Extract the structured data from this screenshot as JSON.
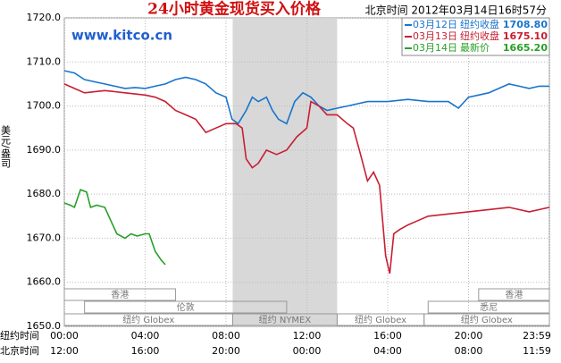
{
  "chart_data": {
    "type": "line",
    "title": "24小时黄金现货买入价格",
    "subtitle": "北京时间 2012年03月14日16时57分",
    "watermark": "www.kitco.cn",
    "ylabel": "美元/盎司",
    "ylim": [
      1650,
      1720
    ],
    "yticks": [
      {
        "value": 1650,
        "label": "1650.0"
      },
      {
        "value": 1660,
        "label": "1660.0"
      },
      {
        "value": 1670,
        "label": "1670.0"
      },
      {
        "value": 1680,
        "label": "1680.0"
      },
      {
        "value": 1690,
        "label": "1690.0"
      },
      {
        "value": 1700,
        "label": "1700.0"
      },
      {
        "value": 1710,
        "label": "1710.0"
      },
      {
        "value": 1720,
        "label": "1720.0"
      }
    ],
    "xlim": [
      0,
      24
    ],
    "grid": true,
    "time_axes": [
      {
        "name": "纽约时间",
        "ticks": [
          {
            "value": 0,
            "label": "00:00"
          },
          {
            "value": 4,
            "label": "04:00"
          },
          {
            "value": 8,
            "label": "08:00"
          },
          {
            "value": 12,
            "label": "12:00"
          },
          {
            "value": 16,
            "label": "16:00"
          },
          {
            "value": 20,
            "label": "20:00"
          },
          {
            "value": 24,
            "label": "23:59"
          }
        ]
      },
      {
        "name": "北京时间",
        "ticks": [
          {
            "value": 0,
            "label": "12:00"
          },
          {
            "value": 4,
            "label": "16:00"
          },
          {
            "value": 8,
            "label": "20:00"
          },
          {
            "value": 12,
            "label": "00:00"
          },
          {
            "value": 16,
            "label": "04:00"
          },
          {
            "value": 20,
            "label": "08:00"
          },
          {
            "value": 24,
            "label": "11:59"
          }
        ]
      }
    ],
    "shade": [
      8.33,
      13.5
    ],
    "sessions": [
      {
        "row": 0,
        "start": 0,
        "end": 5.5,
        "label": "香港"
      },
      {
        "row": 0,
        "start": 20.5,
        "end": 24,
        "label": "香港"
      },
      {
        "row": 1,
        "start": 1,
        "end": 11,
        "label": "伦敦"
      },
      {
        "row": 1,
        "start": 18,
        "end": 24,
        "label": "悉尼"
      },
      {
        "row": 2,
        "start": 0,
        "end": 8.33,
        "label": "纽约 Globex"
      },
      {
        "row": 2,
        "start": 8.33,
        "end": 13.5,
        "label": "纽约 NYMEX"
      },
      {
        "row": 2,
        "start": 13.5,
        "end": 17.8,
        "label": "纽约 Globex"
      },
      {
        "row": 2,
        "start": 17.8,
        "end": 24,
        "label": "纽约 Globex"
      }
    ],
    "series": [
      {
        "name": "03月12日",
        "note": "纽约收盘",
        "price_label": "1708.80",
        "color": "#1874cd",
        "x": [
          0,
          0.5,
          1,
          1.5,
          2,
          2.5,
          3,
          3.5,
          4,
          4.5,
          5,
          5.5,
          6,
          6.5,
          7,
          7.5,
          8,
          8.3,
          8.6,
          9,
          9.3,
          9.6,
          10,
          10.3,
          10.6,
          11,
          11.4,
          11.8,
          12.2,
          12.6,
          13,
          13.5,
          14,
          15,
          16,
          17,
          18,
          19,
          19.5,
          20,
          20.5,
          21,
          21.5,
          22,
          22.5,
          23,
          23.5,
          24
        ],
        "values": [
          1708,
          1707.5,
          1706,
          1705.5,
          1705,
          1704.5,
          1704,
          1704.2,
          1704,
          1704.5,
          1705,
          1706,
          1706.5,
          1706,
          1705,
          1703,
          1702,
          1697,
          1696,
          1699,
          1702,
          1701,
          1702,
          1699,
          1697,
          1696,
          1701,
          1703,
          1702,
          1700,
          1699,
          1699.5,
          1700,
          1701,
          1701,
          1701.5,
          1701,
          1701,
          1699.5,
          1702,
          1702.5,
          1703,
          1704,
          1705,
          1704.5,
          1704,
          1704.5,
          1704.5
        ]
      },
      {
        "name": "03月13日",
        "note": "纽约收盘",
        "price_label": "1675.10",
        "color": "#c81e32",
        "x": [
          0,
          0.5,
          1,
          2,
          3,
          4,
          4.5,
          5,
          5.5,
          6,
          6.5,
          7,
          7.5,
          8,
          8.5,
          8.8,
          9,
          9.3,
          9.6,
          10,
          10.5,
          11,
          11.5,
          12,
          12.2,
          12.6,
          13,
          13.5,
          14,
          14.3,
          14.6,
          15,
          15.3,
          15.6,
          15.9,
          16.1,
          16.3,
          16.6,
          17,
          17.5,
          18,
          19,
          20,
          21,
          22,
          23,
          24
        ],
        "values": [
          1705,
          1704,
          1703,
          1703.5,
          1703,
          1702.5,
          1702,
          1701,
          1699,
          1698,
          1697,
          1694,
          1695,
          1696,
          1696,
          1695,
          1688,
          1686,
          1687,
          1690,
          1689,
          1690,
          1693,
          1695,
          1701,
          1700,
          1698,
          1698,
          1696,
          1695,
          1690,
          1683,
          1685,
          1682,
          1666,
          1662,
          1671,
          1672,
          1673,
          1674,
          1675,
          1675.5,
          1676,
          1676.5,
          1677,
          1676,
          1677
        ]
      },
      {
        "name": "03月14日",
        "note": "最新价",
        "price_label": "1665.20",
        "color": "#28a028",
        "x": [
          0,
          0.3,
          0.5,
          0.8,
          1.1,
          1.3,
          1.6,
          2,
          2.3,
          2.6,
          3,
          3.3,
          3.6,
          4,
          4.2,
          4.5,
          4.8,
          5
        ],
        "values": [
          1678,
          1677.5,
          1677,
          1681,
          1680.5,
          1677,
          1677.5,
          1677,
          1674,
          1671,
          1670,
          1671,
          1670.5,
          1671,
          1671,
          1667,
          1665,
          1664
        ]
      }
    ]
  }
}
